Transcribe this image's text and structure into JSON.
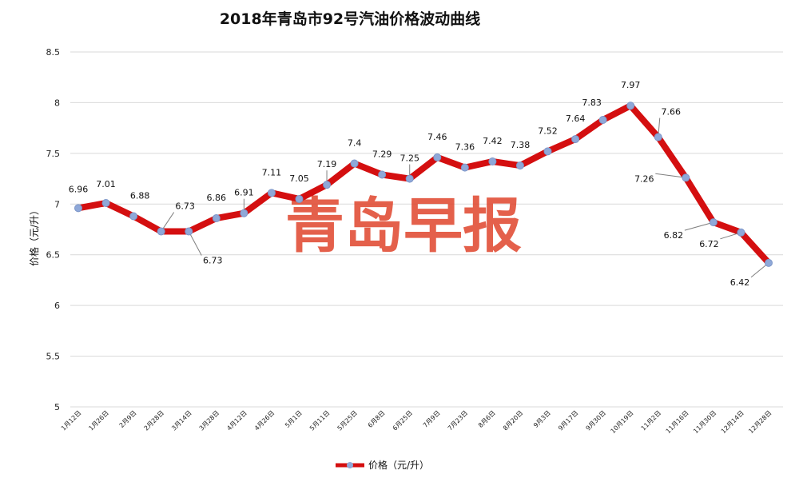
{
  "chart_data": {
    "type": "line",
    "title": "2018年青岛市92号汽油价格波动曲线",
    "ylabel": "价格（元/升）",
    "xlabel": "",
    "ylim": [
      5,
      8.5
    ],
    "yticks": [
      "5",
      "5.5",
      "6",
      "6.5",
      "7",
      "7.5",
      "8",
      "8.5"
    ],
    "grid": true,
    "legend_position": "bottom",
    "watermark": "青岛早报",
    "categories": [
      "1月12日",
      "1月26日",
      "2月9日",
      "2月28日",
      "3月14日",
      "3月28日",
      "4月12日",
      "4月26日",
      "5月1日",
      "5月11日",
      "5月25日",
      "6月8日",
      "6月25日",
      "7月9日",
      "7月23日",
      "8月6日",
      "8月20日",
      "9月3日",
      "9月17日",
      "9月30日",
      "10月19日",
      "11月2日",
      "11月16日",
      "11月30日",
      "12月14日",
      "12月28日"
    ],
    "series": [
      {
        "name": "价格（元/升）",
        "color": "#d40f10",
        "marker_color": "#8fa8d8",
        "values": [
          6.96,
          7.01,
          6.88,
          6.73,
          6.73,
          6.86,
          6.91,
          7.11,
          7.05,
          7.19,
          7.4,
          7.29,
          7.25,
          7.46,
          7.36,
          7.42,
          7.38,
          7.52,
          7.64,
          7.83,
          7.97,
          7.66,
          7.26,
          6.82,
          6.72,
          6.42
        ],
        "labels": [
          "6.96",
          "7.01",
          "6.88",
          "6.73",
          "6.73",
          "6.86",
          "6.91",
          "7.11",
          "7.05",
          "7.19",
          "7.4",
          "7.29",
          "7.25",
          "7.46",
          "7.36",
          "7.42",
          "7.38",
          "7.52",
          "7.64",
          "7.83",
          "7.97",
          "7.66",
          "7.26",
          "6.82",
          "6.72",
          "6.42"
        ]
      }
    ]
  }
}
